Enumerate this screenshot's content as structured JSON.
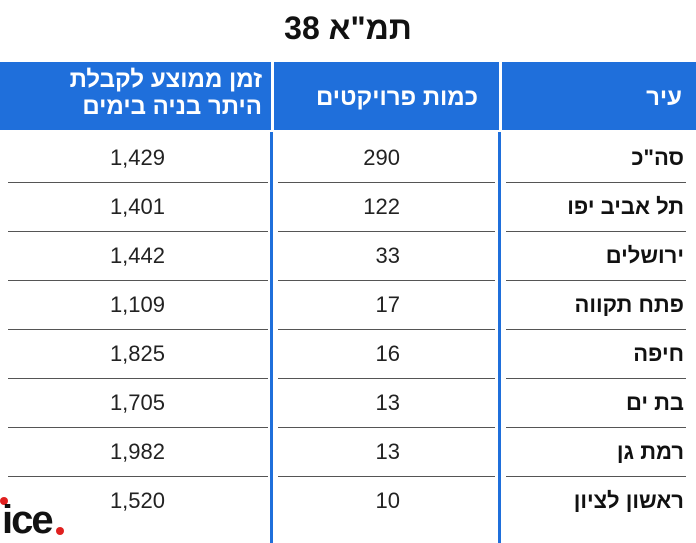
{
  "title": "תמ\"א 38",
  "table": {
    "header": [
      "עיר",
      "כמות פרויקטים",
      [
        "זמן ממוצע לקבלת",
        "היתר בניה בימים"
      ]
    ],
    "rows": [
      [
        "סה\"כ",
        "290",
        "1,429"
      ],
      [
        "תל אביב יפו",
        "122",
        "1,401"
      ],
      [
        "ירושלים",
        "33",
        "1,442"
      ],
      [
        "פתח תקווה",
        "17",
        "1,109"
      ],
      [
        "חיפה",
        "16",
        "1,825"
      ],
      [
        "בת ים",
        "13",
        "1,705"
      ],
      [
        "רמת גן",
        "13",
        "1,982"
      ],
      [
        "ראשון לציון",
        "10",
        "1,520"
      ]
    ]
  },
  "logo": "ice"
}
